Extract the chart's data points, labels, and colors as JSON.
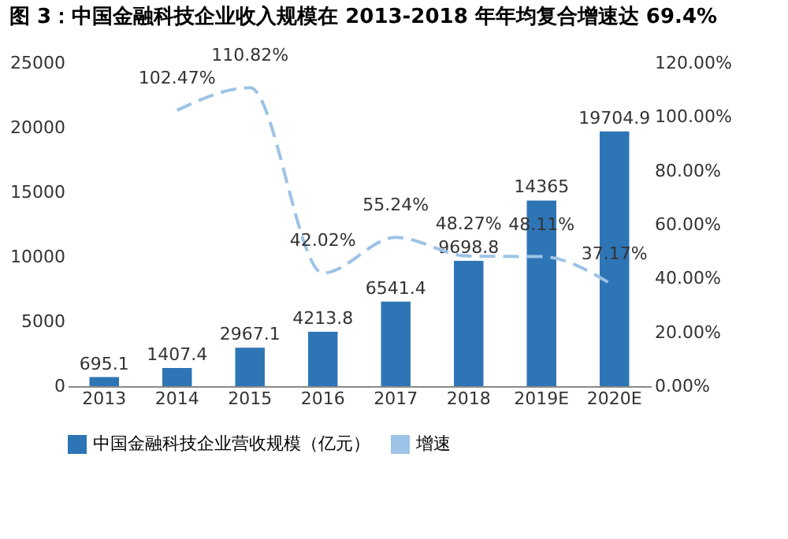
{
  "chart_data": {
    "type": "bar",
    "title": "图 3：中国金融科技企业收入规模在 2013-2018 年年均复合增速达 69.4%",
    "categories": [
      "2013",
      "2014",
      "2015",
      "2016",
      "2017",
      "2018",
      "2019E",
      "2020E"
    ],
    "series": [
      {
        "name": "中国金融科技企业营收规模（亿元）",
        "color": "#2e75b6",
        "values": [
          695.1,
          1407.4,
          2967.1,
          4213.8,
          6541.4,
          9698.8,
          14365,
          19704.9
        ],
        "value_labels": [
          "695.1",
          "1407.4",
          "2967.1",
          "4213.8",
          "6541.4",
          "9698.8",
          "14365",
          "19704.9"
        ]
      },
      {
        "name": "增速",
        "type": "line",
        "axis": "y2",
        "color": "#9dc3e6",
        "line_style": "dashed",
        "values": [
          null,
          102.47,
          110.82,
          42.02,
          55.24,
          48.27,
          48.11,
          37.17
        ],
        "value_labels": [
          null,
          "102.47%",
          "110.82%",
          "42.02%",
          "55.24%",
          "48.27%",
          "48.11%",
          "37.17%"
        ]
      }
    ],
    "ylim": [
      0,
      25000
    ],
    "yticks": [
      0,
      5000,
      10000,
      15000,
      20000,
      25000
    ],
    "y2lim": [
      0,
      120
    ],
    "y2ticks": [
      {
        "value": 0,
        "label": "0.00%"
      },
      {
        "value": 20,
        "label": "20.00%"
      },
      {
        "value": 40,
        "label": "40.00%"
      },
      {
        "value": 60,
        "label": "60.00%"
      },
      {
        "value": 80,
        "label": "80.00%"
      },
      {
        "value": 100,
        "label": "100.00%"
      },
      {
        "value": 120,
        "label": "120.00%"
      }
    ],
    "legend": "bottom",
    "marker": "none"
  }
}
